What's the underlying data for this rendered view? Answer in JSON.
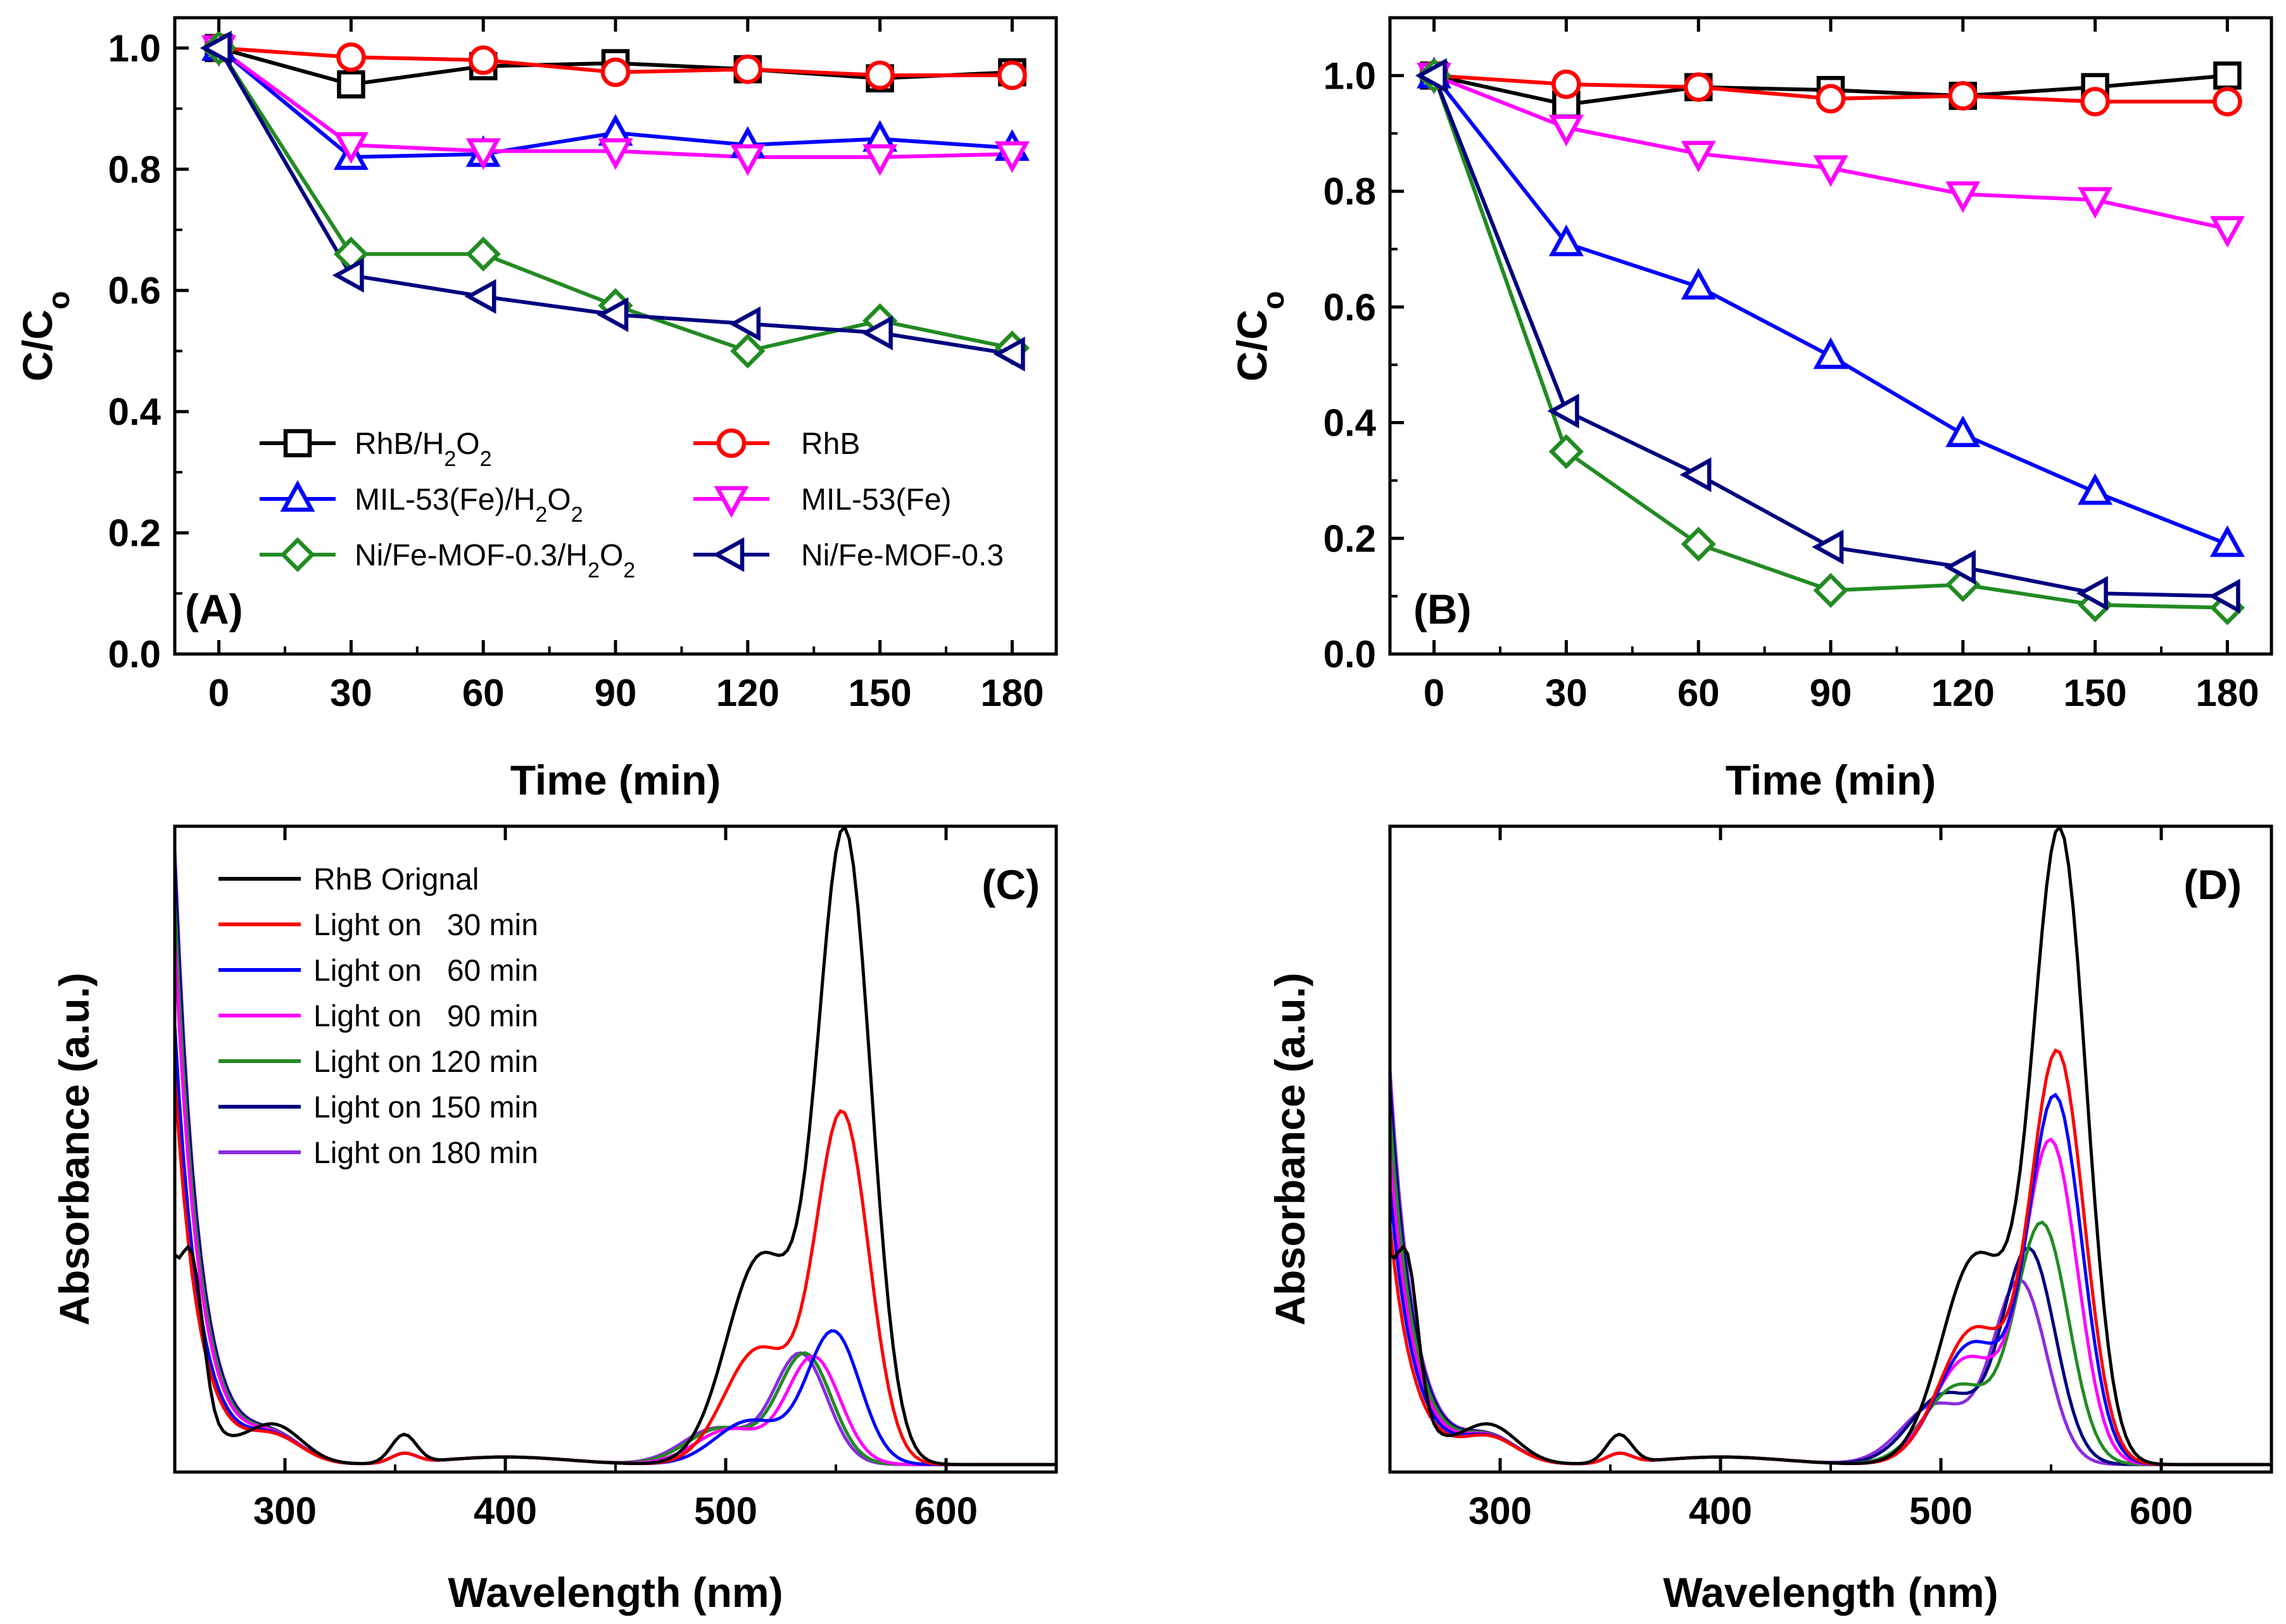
{
  "chart_data": [
    {
      "id": "A",
      "type": "line",
      "panel_label": "(A)",
      "xlabel": "Time (min)",
      "ylabel": "C/Co",
      "xlim": [
        -10,
        190
      ],
      "ylim": [
        0.0,
        1.05
      ],
      "xticks": [
        0,
        30,
        60,
        90,
        120,
        150,
        180
      ],
      "yticks": [
        0.0,
        0.2,
        0.4,
        0.6,
        0.8,
        1.0
      ],
      "ytick_labels": [
        "0.0",
        "0.2",
        "0.4",
        "0.6",
        "0.8",
        "1.0"
      ],
      "legend_position": "bottom-left",
      "x": [
        0,
        30,
        60,
        90,
        120,
        150,
        180
      ],
      "series": [
        {
          "name": "RhB/H2O2",
          "label_main": "RhB/H",
          "sub1": "2",
          "mid": "O",
          "sub2": "2",
          "tail": "",
          "color": "#000000",
          "marker": "square",
          "values": [
            1.0,
            0.94,
            0.97,
            0.975,
            0.965,
            0.95,
            0.96
          ]
        },
        {
          "name": "RhB",
          "label_main": "RhB",
          "sub1": "",
          "mid": "",
          "sub2": "",
          "tail": "",
          "color": "#ff0000",
          "marker": "circle",
          "values": [
            1.0,
            0.985,
            0.98,
            0.96,
            0.965,
            0.955,
            0.955
          ]
        },
        {
          "name": "MIL-53(Fe)/H2O2",
          "label_main": "MIL-53(Fe)/H",
          "sub1": "2",
          "mid": "O",
          "sub2": "2",
          "tail": "",
          "color": "#0000ff",
          "marker": "triangle-up",
          "values": [
            1.0,
            0.82,
            0.825,
            0.86,
            0.84,
            0.85,
            0.835
          ]
        },
        {
          "name": "MIL-53(Fe)",
          "label_main": "MIL-53(Fe)",
          "sub1": "",
          "mid": "",
          "sub2": "",
          "tail": "",
          "color": "#ff00ff",
          "marker": "triangle-down",
          "values": [
            1.0,
            0.84,
            0.83,
            0.83,
            0.82,
            0.82,
            0.825
          ]
        },
        {
          "name": "Ni/Fe-MOF-0.3/H2O2",
          "label_main": "Ni/Fe-MOF-0.3/H",
          "sub1": "2",
          "mid": "O",
          "sub2": "2",
          "tail": "",
          "color": "#228b22",
          "marker": "diamond",
          "values": [
            1.0,
            0.66,
            0.66,
            0.575,
            0.5,
            0.55,
            0.505
          ]
        },
        {
          "name": "Ni/Fe-MOF-0.3",
          "label_main": "Ni/Fe-MOF-0.3",
          "sub1": "",
          "mid": "",
          "sub2": "",
          "tail": "",
          "color": "#000080",
          "marker": "triangle-left",
          "values": [
            1.0,
            0.625,
            0.59,
            0.56,
            0.545,
            0.53,
            0.495
          ]
        }
      ]
    },
    {
      "id": "B",
      "type": "line",
      "panel_label": "(B)",
      "xlabel": "Time (min)",
      "ylabel": "C/Co",
      "xlim": [
        -10,
        190
      ],
      "ylim": [
        0.0,
        1.1
      ],
      "xticks": [
        0,
        30,
        60,
        90,
        120,
        150,
        180
      ],
      "yticks": [
        0.0,
        0.2,
        0.4,
        0.6,
        0.8,
        1.0
      ],
      "ytick_labels": [
        "0.0",
        "0.2",
        "0.4",
        "0.6",
        "0.8",
        "1.0"
      ],
      "x": [
        0,
        30,
        60,
        90,
        120,
        150,
        180
      ],
      "series": [
        {
          "name": "RhB/H2O2",
          "color": "#000000",
          "marker": "square",
          "values": [
            1.0,
            0.95,
            0.98,
            0.975,
            0.965,
            0.98,
            1.0
          ]
        },
        {
          "name": "RhB",
          "color": "#ff0000",
          "marker": "circle",
          "values": [
            1.0,
            0.985,
            0.98,
            0.96,
            0.965,
            0.955,
            0.955
          ]
        },
        {
          "name": "MIL-53(Fe)/H2O2",
          "color": "#0000ff",
          "marker": "triangle-up",
          "values": [
            1.0,
            0.71,
            0.635,
            0.515,
            0.38,
            0.28,
            0.19
          ]
        },
        {
          "name": "MIL-53(Fe)",
          "color": "#ff00ff",
          "marker": "triangle-down",
          "values": [
            1.0,
            0.91,
            0.865,
            0.84,
            0.795,
            0.785,
            0.735
          ]
        },
        {
          "name": "Ni/Fe-MOF-0.3/H2O2",
          "color": "#228b22",
          "marker": "diamond",
          "values": [
            1.0,
            0.35,
            0.19,
            0.11,
            0.12,
            0.085,
            0.08
          ]
        },
        {
          "name": "Ni/Fe-MOF-0.3",
          "color": "#000080",
          "marker": "triangle-left",
          "values": [
            1.0,
            0.42,
            0.31,
            0.185,
            0.15,
            0.105,
            0.1
          ]
        }
      ]
    },
    {
      "id": "C",
      "type": "line",
      "panel_label": "(C)",
      "xlabel": "Wavelength (nm)",
      "ylabel": "Absorbance (a.u.)",
      "xlim": [
        250,
        650
      ],
      "ylim": [
        0.0,
        1.03
      ],
      "xticks": [
        300,
        400,
        500,
        600
      ],
      "legend_position": "top-left",
      "legend": [
        "RhB Orignal",
        "Light on   30 min",
        "Light on   60 min",
        "Light on   90 min",
        "Light on 120 min",
        "Light on 150 min",
        "Light on 180 min"
      ],
      "colors": [
        "#000000",
        "#ff0000",
        "#0000ff",
        "#ff00ff",
        "#228b22",
        "#000080",
        "#8a2be2"
      ],
      "peak_heights": [
        1.0,
        0.555,
        0.21,
        0.17,
        0.175,
        0.175,
        0.175
      ],
      "peak_centers": [
        554,
        553,
        549,
        540,
        536,
        536,
        534
      ],
      "uv_heights": [
        0.28,
        0.62,
        0.7,
        0.84,
        0.9,
        0.96,
        0.98
      ]
    },
    {
      "id": "D",
      "type": "line",
      "panel_label": "(D)",
      "xlabel": "Wavelength (nm)",
      "ylabel": "Absorbance (a.u.)",
      "xlim": [
        250,
        650
      ],
      "ylim": [
        0.0,
        1.03
      ],
      "xticks": [
        300,
        400,
        500,
        600
      ],
      "colors": [
        "#000000",
        "#ff0000",
        "#0000ff",
        "#ff00ff",
        "#228b22",
        "#000080",
        "#8a2be2"
      ],
      "peak_heights": [
        1.0,
        0.65,
        0.58,
        0.51,
        0.38,
        0.34,
        0.29
      ],
      "peak_centers": [
        554,
        553,
        552,
        550,
        546,
        540,
        536
      ],
      "uv_heights": [
        0.28,
        0.38,
        0.44,
        0.5,
        0.56,
        0.6,
        0.63
      ]
    }
  ]
}
